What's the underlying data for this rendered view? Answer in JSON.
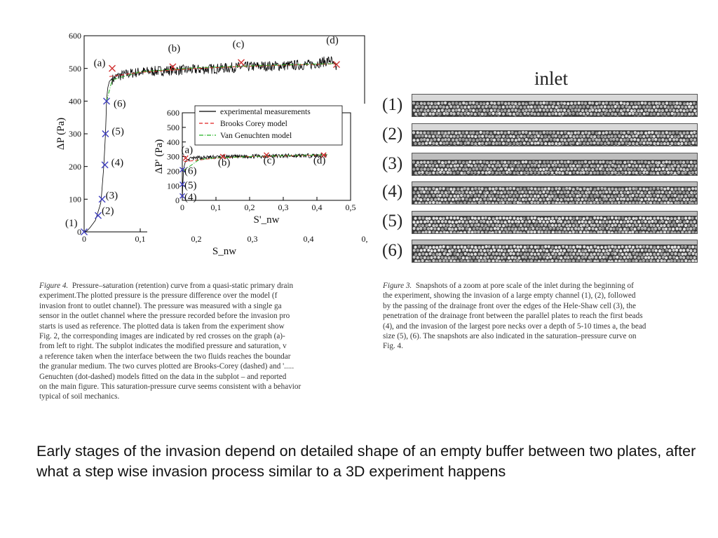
{
  "chart_data": [
    {
      "type": "scatter",
      "title": "",
      "xlabel": "S_nw",
      "ylabel": "ΔP (Pa)",
      "xlim": [
        0,
        0.5
      ],
      "ylim": [
        0,
        600
      ],
      "x_ticks": [
        "0",
        "0,1",
        "0,2",
        "0,3",
        "0,4",
        "0,"
      ],
      "y_ticks": [
        "0",
        "100",
        "200",
        "300",
        "400",
        "500",
        "600"
      ],
      "grid": false,
      "series": [
        {
          "name": "experimental measurements",
          "color": "#000000",
          "style": "solid",
          "x": [
            0,
            0.005,
            0.01,
            0.02,
            0.03,
            0.035,
            0.038,
            0.04,
            0.042,
            0.045,
            0.05,
            0.06,
            0.08,
            0.1,
            0.15,
            0.2,
            0.25,
            0.3,
            0.35,
            0.4,
            0.43,
            0.44,
            0.445,
            0.45
          ],
          "y": [
            0,
            3,
            12,
            35,
            90,
            200,
            300,
            400,
            440,
            460,
            470,
            480,
            488,
            493,
            498,
            500,
            505,
            510,
            512,
            515,
            525,
            530,
            510,
            505
          ]
        },
        {
          "name": "Brooks Corey model",
          "color": "#e02020",
          "style": "dashed",
          "x": [
            0.045,
            0.1,
            0.2,
            0.3,
            0.4,
            0.45
          ],
          "y": [
            475,
            488,
            500,
            507,
            512,
            514
          ]
        },
        {
          "name": "Van Genuchten model",
          "color": "#20b020",
          "style": "dashdot",
          "x": [
            0.04,
            0.05,
            0.1,
            0.2,
            0.3,
            0.4,
            0.45
          ],
          "y": [
            400,
            465,
            490,
            502,
            508,
            513,
            515
          ]
        }
      ],
      "snapshot_points": {
        "color": "#4040c0",
        "labels": [
          "(1)",
          "(2)",
          "(3)",
          "(4)",
          "(5)",
          "(6)"
        ],
        "x": [
          0.0,
          0.025,
          0.032,
          0.037,
          0.038,
          0.04
        ],
        "y": [
          0,
          50,
          100,
          205,
          300,
          400
        ]
      },
      "image_points": {
        "color": "#d03030",
        "labels": [
          "(a)",
          "(b)",
          "(c)",
          "(d)"
        ],
        "x": [
          0.05,
          0.158,
          0.28,
          0.45
        ],
        "y": [
          500,
          505,
          518,
          512
        ]
      },
      "legend": {
        "placement": "top-right of inset",
        "entries": [
          "experimental measurements",
          "Brooks Corey model",
          "Van Genuchten model"
        ]
      }
    },
    {
      "type": "scatter",
      "title": "",
      "xlabel": "S'_nw",
      "ylabel": "ΔP' (Pa)",
      "xlim": [
        0,
        0.5
      ],
      "ylim": [
        0,
        600
      ],
      "x_ticks": [
        "0",
        "0,1",
        "0,2",
        "0,3",
        "0,4",
        "0,5"
      ],
      "y_ticks": [
        "0",
        "100",
        "200",
        "300",
        "400",
        "500",
        "600"
      ],
      "grid": false,
      "series": [
        {
          "name": "experimental measurements",
          "color": "#000000",
          "style": "solid",
          "x": [
            0,
            0.002,
            0.005,
            0.01,
            0.02,
            0.05,
            0.1,
            0.2,
            0.3,
            0.4,
            0.43
          ],
          "y": [
            0,
            150,
            230,
            270,
            285,
            295,
            300,
            305,
            308,
            310,
            312
          ]
        },
        {
          "name": "Brooks Corey model",
          "color": "#e02020",
          "style": "dashed",
          "x": [
            0.005,
            0.1,
            0.2,
            0.3,
            0.43
          ],
          "y": [
            265,
            290,
            300,
            305,
            310
          ]
        },
        {
          "name": "Van Genuchten model",
          "color": "#20b020",
          "style": "dashdot",
          "x": [
            0.002,
            0.05,
            0.1,
            0.2,
            0.3,
            0.43
          ],
          "y": [
            200,
            280,
            292,
            300,
            306,
            312
          ]
        }
      ],
      "snapshot_points": {
        "color": "#4040c0",
        "labels": [
          "(6)",
          "(5)",
          "(4)"
        ],
        "x": [
          0,
          0,
          0
        ],
        "y": [
          210,
          110,
          30
        ]
      },
      "image_points": {
        "color": "#d03030",
        "labels": [
          "(a)",
          "(b)",
          "(c)",
          "(d)"
        ],
        "x": [
          0.01,
          0.12,
          0.25,
          0.42
        ],
        "y": [
          290,
          300,
          310,
          310
        ]
      }
    }
  ],
  "figure4_caption": [
    "Figure 4.",
    "Pressure–saturation (retention) curve from a quasi-static primary drain",
    "experiment.The plotted pressure is the pressure difference over the model (f",
    "invasion front to outlet channel). The pressure was measured with a single ga",
    "sensor in the outlet channel where the pressure recorded before the invasion pro",
    "starts is used as reference. The plotted data is taken from the experiment show",
    "Fig. 2, the corresponding images are indicated by red crosses on the graph (a)-",
    "from left to right. The subplot indicates the modified pressure and saturation, v",
    "a reference taken when the interface between the two fluids reaches the boundar",
    "the granular medium. The two curves plotted are Brooks-Corey (dashed) and '.....",
    "Genuchten (dot-dashed) models fitted on the data in the subplot – and reported",
    "on the main figure. This saturation-pressure curve seems consistent with a behavior",
    "typical of soil mechanics."
  ],
  "figure3_caption": [
    "Figure 3.",
    "Snapshots of a zoom at pore scale of the inlet during the beginning of",
    "the experiment, showing the invasion of a large empty channel (1), (2), followed",
    "by the passing of the drainage front over the edges of the Hele-Shaw cell (3), the",
    "penetration of the drainage front between the parallel plates to reach the first beads",
    "(4), and the invasion of the largest pore necks over a depth of 5-10 times a, the bead",
    "size (5), (6). The snapshots are also indicated in the saturation–pressure curve on",
    "Fig. 4."
  ],
  "snapshots": {
    "title": "inlet",
    "labels": [
      "(1)",
      "(2)",
      "(3)",
      "(4)",
      "(5)",
      "(6)"
    ]
  },
  "bottom_text": "Early stages of the invasion depend on detailed shape of an empty buffer between two plates, after what a step wise invasion process similar to a 3D experiment happens"
}
